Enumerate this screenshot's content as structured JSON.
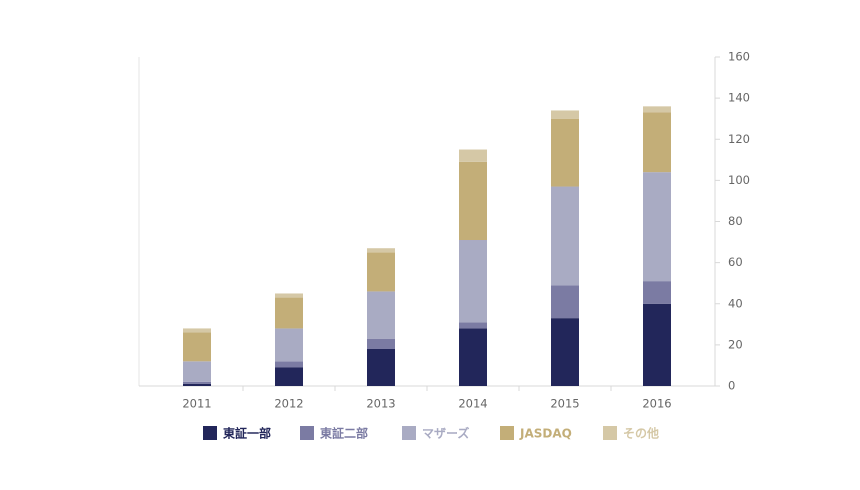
{
  "chart_data": {
    "type": "stacked-bar",
    "categories": [
      "2011",
      "2012",
      "2013",
      "2014",
      "2015",
      "2016"
    ],
    "series": [
      {
        "name": "東証一部",
        "color": "#22265a",
        "values": [
          1,
          9,
          18,
          28,
          33,
          40
        ]
      },
      {
        "name": "東証二部",
        "color": "#7b7ba3",
        "values": [
          1,
          3,
          5,
          3,
          16,
          11
        ]
      },
      {
        "name": "マザーズ",
        "color": "#a9abc3",
        "values": [
          10,
          16,
          23,
          40,
          48,
          53
        ]
      },
      {
        "name": "JASDAQ",
        "color": "#c3ae78",
        "values": [
          14,
          15,
          19,
          38,
          33,
          29
        ]
      },
      {
        "name": "その他",
        "color": "#d5c8a6",
        "values": [
          2,
          2,
          2,
          6,
          4,
          3
        ]
      }
    ],
    "ylim": [
      0,
      160
    ],
    "yticks": [
      0,
      20,
      40,
      60,
      80,
      100,
      120,
      140,
      160
    ],
    "y_axis_side": "right",
    "grid": false,
    "legend": "bottom"
  }
}
